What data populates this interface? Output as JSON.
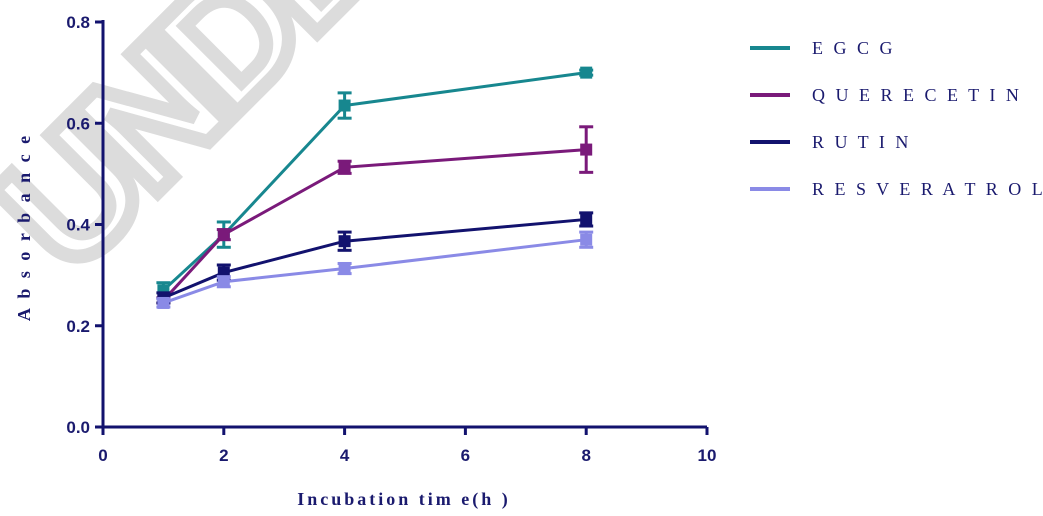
{
  "chart_data": {
    "type": "line",
    "title": "",
    "xlabel": "Incubation tim e(h )",
    "ylabel": "A b s o r b a n c e",
    "xlim": [
      0,
      10
    ],
    "ylim": [
      0,
      0.8
    ],
    "x_ticks": [
      "0",
      "2",
      "4",
      "6",
      "8",
      "10"
    ],
    "y_ticks": [
      "0.0",
      "0.2",
      "0.4",
      "0.6",
      "0.8"
    ],
    "x": [
      1,
      2,
      4,
      8
    ],
    "legend_position": "right",
    "watermark": "UNDER",
    "series": [
      {
        "name": "E G C G",
        "color": "#17878f",
        "marker": "square",
        "values": [
          0.27,
          0.38,
          0.635,
          0.7
        ],
        "errors": [
          0.015,
          0.025,
          0.025,
          0.005
        ]
      },
      {
        "name": "Q U E R E C E T I N",
        "color": "#7a1a7a",
        "marker": "square",
        "values": [
          0.25,
          0.38,
          0.513,
          0.548
        ],
        "errors": [
          0.005,
          0.01,
          0.012,
          0.045
        ]
      },
      {
        "name": "R U T I N",
        "color": "#12126e",
        "marker": "square",
        "values": [
          0.255,
          0.305,
          0.367,
          0.41
        ],
        "errors": [
          0.01,
          0.015,
          0.018,
          0.013
        ]
      },
      {
        "name": "R E S V E R A T R O L",
        "color": "#8a8ae6",
        "marker": "square",
        "values": [
          0.245,
          0.287,
          0.313,
          0.37
        ],
        "errors": [
          0.008,
          0.01,
          0.01,
          0.015
        ]
      }
    ]
  }
}
